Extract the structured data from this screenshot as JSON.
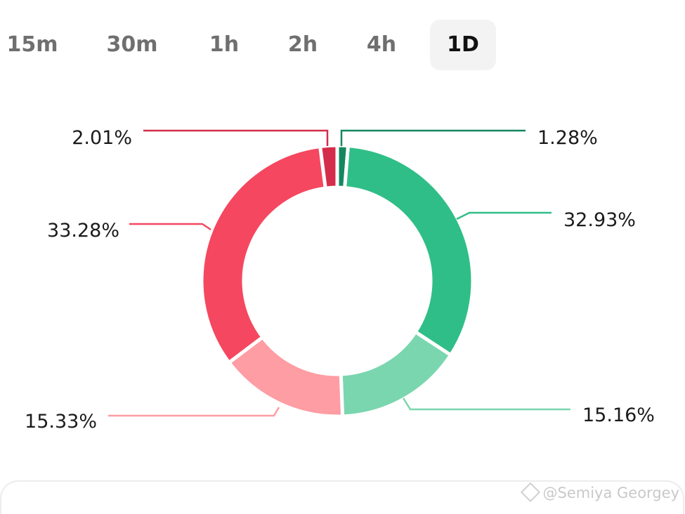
{
  "tabs": [
    {
      "label": "15m",
      "active": false
    },
    {
      "label": "30m",
      "active": false
    },
    {
      "label": "1h",
      "active": false
    },
    {
      "label": "2h",
      "active": false
    },
    {
      "label": "4h",
      "active": false
    },
    {
      "label": "1D",
      "active": true
    }
  ],
  "chart_data": {
    "type": "pie",
    "donut": true,
    "title": "",
    "slices": [
      {
        "label": "1.28%",
        "value": 1.28,
        "color": "#14875f"
      },
      {
        "label": "32.93%",
        "value": 32.93,
        "color": "#2fbe87"
      },
      {
        "label": "15.16%",
        "value": 15.16,
        "color": "#7ad6af"
      },
      {
        "label": "15.33%",
        "value": 15.33,
        "color": "#fe9da3"
      },
      {
        "label": "33.28%",
        "value": 33.28,
        "color": "#f5475f"
      },
      {
        "label": "2.01%",
        "value": 2.01,
        "color": "#d42d4b"
      }
    ]
  },
  "watermark": "@Semiya Georgey"
}
